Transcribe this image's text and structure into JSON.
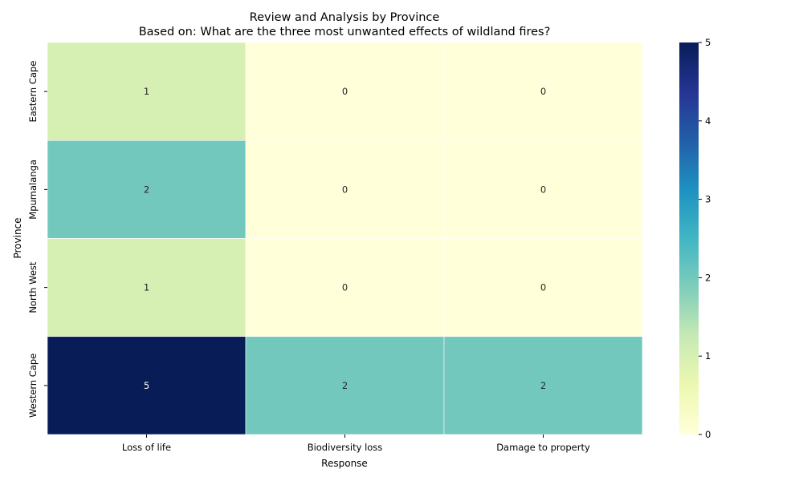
{
  "chart_data": {
    "type": "heatmap",
    "title": "Review and Analysis by Province",
    "subtitle": "Based on: What are the three most unwanted effects of wildland fires?",
    "xlabel": "Response",
    "ylabel": "Province",
    "x_categories": [
      "Loss of life",
      "Biodiversity loss",
      "Damage to property"
    ],
    "y_categories": [
      "Eastern Cape",
      "Mpumalanga",
      "North West",
      "Western Cape"
    ],
    "values": [
      [
        1,
        0,
        0
      ],
      [
        2,
        0,
        0
      ],
      [
        1,
        0,
        0
      ],
      [
        5,
        2,
        2
      ]
    ],
    "annotated": true,
    "colormap": "YlGnBu",
    "vmin": 0,
    "vmax": 5,
    "colorbar_ticks": [
      0,
      1,
      2,
      3,
      4,
      5
    ],
    "colorbar_tick_labels": [
      "0",
      "1",
      "2",
      "3",
      "4",
      "5"
    ]
  }
}
